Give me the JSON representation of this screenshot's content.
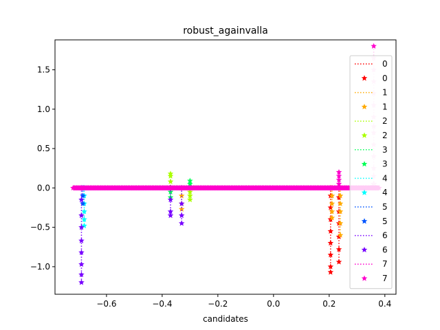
{
  "chart_data": {
    "type": "line",
    "title": "robust_againvalla",
    "xlabel": "candidates",
    "ylabel": "",
    "xlim": [
      -0.785,
      0.44
    ],
    "ylim": [
      -1.35,
      1.88
    ],
    "x_ticks": [
      -0.6,
      -0.4,
      -0.2,
      0.0,
      0.2,
      0.4
    ],
    "x_tick_labels": [
      "−0.6",
      "−0.4",
      "−0.2",
      "0.0",
      "0.2",
      "0.4"
    ],
    "y_ticks": [
      -1.0,
      -0.5,
      0.0,
      0.5,
      1.0,
      1.5
    ],
    "y_tick_labels": [
      "−1.0",
      "−0.5",
      "0.0",
      "0.5",
      "1.0",
      "1.5"
    ],
    "grid": false,
    "legend_position": "right",
    "baseline": {
      "x_start": -0.72,
      "x_end": 0.38,
      "y": 0.0
    },
    "series": [
      {
        "name": "0",
        "color": "#ff0000",
        "clusters": [
          {
            "x": 0.205,
            "values": [
              0.0,
              -0.1,
              -0.25,
              -0.4,
              -0.55,
              -0.7,
              -0.85,
              -1.0,
              -1.07
            ]
          },
          {
            "x": 0.235,
            "values": [
              0.0,
              -0.12,
              -0.3,
              -0.45,
              -0.62,
              -0.78,
              -0.94
            ]
          }
        ]
      },
      {
        "name": "1",
        "color": "#ffaa00",
        "clusters": [
          {
            "x": 0.21,
            "values": [
              0.0,
              -0.1,
              -0.2,
              -0.3,
              -0.38
            ]
          },
          {
            "x": 0.24,
            "values": [
              0.0,
              -0.1,
              -0.2,
              -0.3,
              -0.45,
              -0.6
            ]
          },
          {
            "x": -0.33,
            "values": [
              0.0,
              -0.1,
              -0.2,
              -0.27
            ]
          }
        ]
      },
      {
        "name": "2",
        "color": "#aaff00",
        "clusters": [
          {
            "x": -0.37,
            "values": [
              0.0,
              0.08,
              0.15,
              0.18
            ]
          },
          {
            "x": -0.3,
            "values": [
              0.0,
              -0.05,
              -0.1,
              -0.15
            ]
          }
        ]
      },
      {
        "name": "3",
        "color": "#00ff55",
        "clusters": [
          {
            "x": -0.3,
            "values": [
              0.0,
              0.05,
              0.09
            ]
          },
          {
            "x": -0.37,
            "values": [
              0.0,
              -0.05,
              -0.12
            ]
          }
        ]
      },
      {
        "name": "4",
        "color": "#00ffff",
        "clusters": [
          {
            "x": -0.68,
            "values": [
              0.0,
              -0.1,
              -0.2,
              -0.3,
              -0.4,
              -0.48
            ]
          }
        ]
      },
      {
        "name": "5",
        "color": "#0055ff",
        "clusters": [
          {
            "x": -0.685,
            "values": [
              0.0,
              -0.1,
              -0.2
            ]
          }
        ]
      },
      {
        "name": "6",
        "color": "#7700ff",
        "clusters": [
          {
            "x": -0.69,
            "values": [
              0.0,
              -0.15,
              -0.35,
              -0.5,
              -0.67,
              -0.82,
              -0.97,
              -1.1,
              -1.2
            ]
          },
          {
            "x": -0.37,
            "values": [
              0.0,
              -0.15,
              -0.3,
              -0.35
            ]
          },
          {
            "x": -0.33,
            "values": [
              0.0,
              -0.2,
              -0.35,
              -0.45
            ]
          }
        ]
      },
      {
        "name": "7",
        "color": "#ff00cc",
        "clusters": [
          {
            "x": 0.235,
            "values": [
              0.0,
              0.05,
              0.1,
              0.15,
              0.2
            ]
          },
          {
            "x": 0.36,
            "values": [
              0.0,
              0.02,
              0.05
            ]
          }
        ]
      }
    ],
    "spike_series": {
      "name": "7",
      "color": "#ffc8f0",
      "x": 0.36,
      "values": [
        0.05,
        0.15,
        0.25,
        0.4,
        0.55,
        0.7,
        0.78,
        0.9,
        1.05,
        1.2,
        1.35,
        1.5,
        1.65,
        1.8
      ]
    },
    "legend": [
      {
        "label": "0",
        "style": "line",
        "color": "#ff0000"
      },
      {
        "label": "0",
        "style": "marker",
        "color": "#ff0000"
      },
      {
        "label": "1",
        "style": "line",
        "color": "#ffaa00"
      },
      {
        "label": "1",
        "style": "marker",
        "color": "#ffaa00"
      },
      {
        "label": "2",
        "style": "line",
        "color": "#aaff00"
      },
      {
        "label": "2",
        "style": "marker",
        "color": "#aaff00"
      },
      {
        "label": "3",
        "style": "line",
        "color": "#00ff55"
      },
      {
        "label": "3",
        "style": "marker",
        "color": "#00ff55"
      },
      {
        "label": "4",
        "style": "line",
        "color": "#00ffff"
      },
      {
        "label": "4",
        "style": "marker",
        "color": "#00ffff"
      },
      {
        "label": "5",
        "style": "line",
        "color": "#0055ff"
      },
      {
        "label": "5",
        "style": "marker",
        "color": "#0055ff"
      },
      {
        "label": "6",
        "style": "line",
        "color": "#7700ff"
      },
      {
        "label": "6",
        "style": "marker",
        "color": "#7700ff"
      },
      {
        "label": "7",
        "style": "line",
        "color": "#ff00cc"
      },
      {
        "label": "7",
        "style": "marker",
        "color": "#ff00cc"
      }
    ]
  }
}
